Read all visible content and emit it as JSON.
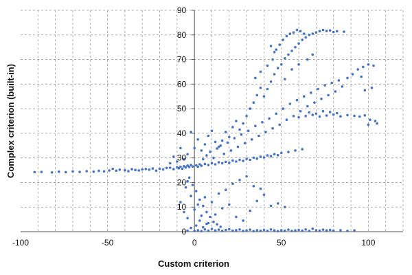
{
  "chart_data": {
    "type": "scatter",
    "title": "",
    "xlabel": "Custom criterion",
    "ylabel": "Complex criterion (built-in)",
    "xlim": [
      -100,
      120
    ],
    "ylim": [
      0,
      90
    ],
    "x_ticks": [
      -100,
      -50,
      0,
      50,
      100
    ],
    "y_ticks": [
      0,
      10,
      20,
      30,
      40,
      50,
      60,
      70,
      80,
      90
    ],
    "grid": "dashed, major x and y",
    "legend": "none",
    "marker_color": "#4472C4",
    "series": [
      {
        "points": [
          [
            -92,
            24.2
          ],
          [
            -88,
            24.3
          ],
          [
            -82,
            24.1
          ],
          [
            -78,
            24.4
          ],
          [
            -74,
            24.2
          ],
          [
            -70,
            24.5
          ],
          [
            -66,
            24.3
          ],
          [
            -62,
            24.6
          ],
          [
            -58,
            24.4
          ],
          [
            -55,
            24.7
          ],
          [
            -52,
            24.5
          ],
          [
            -49,
            24.9
          ],
          [
            -47,
            25.6
          ],
          [
            -45,
            24.8
          ],
          [
            -43,
            25.2
          ],
          [
            -40,
            25.0
          ],
          [
            -38,
            24.6
          ],
          [
            -36,
            25.4
          ],
          [
            -34,
            25.1
          ],
          [
            -32,
            24.9
          ],
          [
            -30,
            25.3
          ],
          [
            -28,
            25.5
          ],
          [
            -26,
            25.2
          ],
          [
            -24,
            25.7
          ],
          [
            -22,
            24.8
          ],
          [
            -20,
            25.6
          ],
          [
            -18,
            25.3
          ],
          [
            -16,
            25.9
          ],
          [
            -14,
            26.0
          ],
          [
            -12,
            25.4
          ],
          [
            -10,
            26.2
          ],
          [
            -9,
            25.8
          ],
          [
            -8,
            26.4
          ],
          [
            -7,
            25.6
          ],
          [
            -6,
            26.6
          ],
          [
            -5,
            26.1
          ],
          [
            -4,
            26.9
          ],
          [
            -3,
            26.3
          ],
          [
            -2,
            27.1
          ],
          [
            -1,
            26.5
          ],
          [
            1,
            27.0
          ],
          [
            2,
            26.4
          ],
          [
            3,
            27.4
          ],
          [
            4,
            26.8
          ],
          [
            6,
            27.5
          ],
          [
            8,
            27.1
          ],
          [
            10,
            27.9
          ],
          [
            12,
            27.4
          ],
          [
            14,
            28.2
          ],
          [
            16,
            27.8
          ],
          [
            18,
            28.4
          ],
          [
            20,
            28.0
          ],
          [
            22,
            28.9
          ],
          [
            24,
            28.5
          ],
          [
            26,
            29.2
          ],
          [
            28,
            28.8
          ],
          [
            30,
            29.6
          ],
          [
            32,
            29.2
          ],
          [
            34,
            30.1
          ],
          [
            36,
            29.7
          ],
          [
            38,
            30.5
          ],
          [
            40,
            30.2
          ],
          [
            42,
            31.0
          ],
          [
            44,
            30.7
          ],
          [
            46,
            31.5
          ],
          [
            48,
            31.1
          ],
          [
            50,
            32.0
          ],
          [
            54,
            32.4
          ],
          [
            58,
            33.0
          ],
          [
            62,
            33.5
          ],
          [
            5,
            29.5
          ],
          [
            7,
            31.0
          ],
          [
            9,
            32.5
          ],
          [
            11,
            30.0
          ],
          [
            13,
            33.8
          ],
          [
            15,
            35.0
          ],
          [
            17,
            31.6
          ],
          [
            19,
            36.2
          ],
          [
            21,
            33.0
          ],
          [
            23,
            38.0
          ],
          [
            25,
            34.5
          ],
          [
            27,
            39.5
          ],
          [
            29,
            36.0
          ],
          [
            31,
            41.0
          ],
          [
            33,
            37.5
          ],
          [
            35,
            43.0
          ],
          [
            37,
            39.0
          ],
          [
            39,
            44.5
          ],
          [
            41,
            40.5
          ],
          [
            43,
            46.0
          ],
          [
            45,
            42.0
          ],
          [
            47,
            48.0
          ],
          [
            49,
            43.5
          ],
          [
            51,
            50.0
          ],
          [
            53,
            45.5
          ],
          [
            55,
            52.0
          ],
          [
            57,
            47.0
          ],
          [
            59,
            53.5
          ],
          [
            61,
            49.0
          ],
          [
            63,
            55.0
          ],
          [
            65,
            51.0
          ],
          [
            67,
            56.5
          ],
          [
            69,
            52.5
          ],
          [
            71,
            58.0
          ],
          [
            73,
            54.0
          ],
          [
            75,
            59.5
          ],
          [
            77,
            55.5
          ],
          [
            79,
            60.5
          ],
          [
            81,
            57.0
          ],
          [
            83,
            61.5
          ],
          [
            85,
            59.0
          ],
          [
            88,
            62.5
          ],
          [
            91,
            64.0
          ],
          [
            94,
            66.0
          ],
          [
            97,
            67.0
          ],
          [
            100,
            68.0
          ],
          [
            103,
            67.5
          ],
          [
            102,
            58.5
          ],
          [
            98,
            57.5
          ],
          [
            96,
            63.0
          ],
          [
            60,
            46.5
          ],
          [
            64,
            47.0
          ],
          [
            68,
            47.5
          ],
          [
            72,
            46.8
          ],
          [
            76,
            47.2
          ],
          [
            80,
            47.6
          ],
          [
            84,
            46.9
          ],
          [
            88,
            47.4
          ],
          [
            92,
            47.1
          ],
          [
            95,
            46.8
          ],
          [
            98,
            47.3
          ],
          [
            101,
            45.5
          ],
          [
            104,
            45.0
          ],
          [
            105,
            44.0
          ],
          [
            100,
            43.5
          ],
          [
            66,
            48.5
          ],
          [
            70,
            48.0
          ],
          [
            74,
            49.0
          ],
          [
            78,
            48.6
          ],
          [
            82,
            48.2
          ],
          [
            40,
            55.0
          ],
          [
            42,
            58.0
          ],
          [
            44,
            61.0
          ],
          [
            46,
            64.0
          ],
          [
            48,
            66.5
          ],
          [
            50,
            68.0
          ],
          [
            52,
            70.5
          ],
          [
            54,
            72.0
          ],
          [
            56,
            73.5
          ],
          [
            58,
            75.0
          ],
          [
            60,
            76.5
          ],
          [
            62,
            78.0
          ],
          [
            64,
            79.0
          ],
          [
            66,
            80.0
          ],
          [
            68,
            80.5
          ],
          [
            70,
            81.0
          ],
          [
            72,
            81.5
          ],
          [
            74,
            82.0
          ],
          [
            76,
            81.6
          ],
          [
            78,
            81.8
          ],
          [
            80,
            81.2
          ],
          [
            82,
            81.5
          ],
          [
            86,
            81.3
          ],
          [
            45,
            70.0
          ],
          [
            47,
            74.0
          ],
          [
            49,
            76.0
          ],
          [
            51,
            78.0
          ],
          [
            53,
            79.5
          ],
          [
            55,
            80.5
          ],
          [
            57,
            81.0
          ],
          [
            59,
            82.0
          ],
          [
            61,
            81.5
          ],
          [
            63,
            80.5
          ],
          [
            44,
            75.5
          ],
          [
            46,
            73.0
          ],
          [
            52,
            62.0
          ],
          [
            56,
            66.0
          ],
          [
            60,
            68.0
          ],
          [
            65,
            70.0
          ],
          [
            68,
            72.0
          ],
          [
            30,
            47.0
          ],
          [
            32,
            50.0
          ],
          [
            34,
            52.5
          ],
          [
            36,
            55.5
          ],
          [
            38,
            58.5
          ],
          [
            35,
            62.5
          ],
          [
            38,
            65.0
          ],
          [
            42,
            67.5
          ],
          [
            28,
            44.0
          ],
          [
            26,
            41.5
          ],
          [
            18,
            40.5
          ],
          [
            20,
            38.5
          ],
          [
            16,
            37.0
          ],
          [
            14,
            34.5
          ],
          [
            12,
            36.5
          ],
          [
            22,
            42.5
          ],
          [
            24,
            45.0
          ],
          [
            10,
            41.0
          ],
          [
            8,
            39.0
          ],
          [
            6,
            35.5
          ],
          [
            4,
            33.0
          ],
          [
            2,
            37.5
          ],
          [
            0,
            34.0
          ],
          [
            -2,
            40.5
          ],
          [
            -4,
            31.5
          ],
          [
            -6,
            29.5
          ],
          [
            -8,
            34.0
          ],
          [
            -10,
            28.5
          ],
          [
            -12,
            30.5
          ],
          [
            -14,
            27.8
          ],
          [
            -3,
            22.0
          ],
          [
            -1,
            19.0
          ],
          [
            1,
            16.5
          ],
          [
            3,
            13.0
          ],
          [
            5,
            10.5
          ],
          [
            7,
            8.0
          ],
          [
            9,
            6.0
          ],
          [
            11,
            4.0
          ],
          [
            13,
            3.0
          ],
          [
            15,
            2.0
          ],
          [
            -5,
            18.0
          ],
          [
            -2,
            14.5
          ],
          [
            2,
            11.0
          ],
          [
            6,
            14.0
          ],
          [
            10,
            12.0
          ],
          [
            14,
            15.5
          ],
          [
            18,
            17.0
          ],
          [
            22,
            19.5
          ],
          [
            26,
            21.0
          ],
          [
            30,
            22.5
          ],
          [
            -8,
            12.0
          ],
          [
            -6,
            8.0
          ],
          [
            -4,
            5.5
          ],
          [
            0,
            9.0
          ],
          [
            4,
            6.5
          ],
          [
            8,
            3.5
          ],
          [
            12,
            7.0
          ],
          [
            16,
            9.5
          ],
          [
            20,
            11.0
          ],
          [
            24,
            6.0
          ],
          [
            28,
            4.5
          ],
          [
            32,
            8.5
          ],
          [
            36,
            12.5
          ],
          [
            40,
            15.0
          ],
          [
            44,
            10.5
          ],
          [
            48,
            11.5
          ],
          [
            52,
            10.0
          ],
          [
            38,
            17.5
          ],
          [
            34,
            18.5
          ],
          [
            -4,
            20.5
          ],
          [
            0,
            0.3
          ],
          [
            2,
            0.6
          ],
          [
            4,
            0.2
          ],
          [
            6,
            0.9
          ],
          [
            8,
            0.4
          ],
          [
            10,
            1.1
          ],
          [
            12,
            0.5
          ],
          [
            14,
            0.8
          ],
          [
            16,
            0.3
          ],
          [
            18,
            0.7
          ],
          [
            20,
            1.0
          ],
          [
            22,
            0.4
          ],
          [
            24,
            0.6
          ],
          [
            26,
            0.9
          ],
          [
            28,
            0.3
          ],
          [
            30,
            0.5
          ],
          [
            32,
            0.8
          ],
          [
            34,
            0.2
          ],
          [
            36,
            0.6
          ],
          [
            38,
            0.4
          ],
          [
            40,
            0.7
          ],
          [
            42,
            0.3
          ],
          [
            44,
            0.9
          ],
          [
            46,
            0.5
          ],
          [
            48,
            0.2
          ],
          [
            50,
            0.6
          ],
          [
            52,
            0.4
          ],
          [
            54,
            0.8
          ],
          [
            56,
            0.3
          ],
          [
            58,
            0.5
          ],
          [
            60,
            0.7
          ],
          [
            62,
            0.4
          ],
          [
            64,
            0.9
          ],
          [
            66,
            0.3
          ],
          [
            68,
            1.2
          ],
          [
            70,
            0.6
          ],
          [
            72,
            0.4
          ],
          [
            74,
            0.8
          ],
          [
            76,
            0.5
          ],
          [
            78,
            0.7
          ],
          [
            80,
            0.4
          ],
          [
            84,
            0.6
          ],
          [
            88,
            0.3
          ],
          [
            92,
            0.5
          ],
          [
            -4,
            0.4
          ],
          [
            -2,
            1.5
          ],
          [
            1,
            2.5
          ],
          [
            3,
            4.5
          ],
          [
            5,
            1.8
          ],
          [
            7,
            3.2
          ]
        ]
      }
    ]
  }
}
